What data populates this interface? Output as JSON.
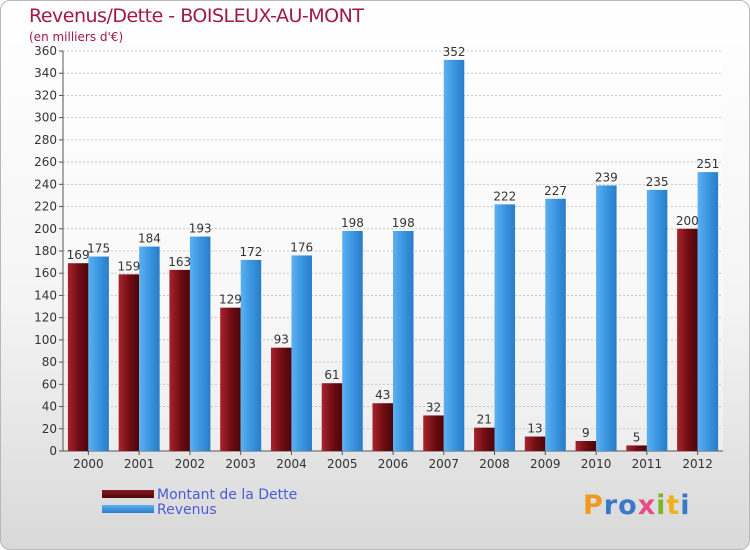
{
  "chart_data": {
    "type": "bar",
    "title": "Revenus/Dette - BOISLEUX-AU-MONT",
    "subtitle": "(en milliers d'€)",
    "categories": [
      "2000",
      "2001",
      "2002",
      "2003",
      "2004",
      "2005",
      "2006",
      "2007",
      "2008",
      "2009",
      "2010",
      "2011",
      "2012"
    ],
    "series": [
      {
        "name": "Montant de la Dette",
        "color": "#7a1016",
        "values": [
          169,
          159,
          163,
          129,
          93,
          61,
          43,
          32,
          21,
          13,
          9,
          5,
          200
        ]
      },
      {
        "name": "Revenus",
        "color": "#3a96e0",
        "values": [
          175,
          184,
          193,
          172,
          176,
          198,
          198,
          352,
          222,
          227,
          239,
          235,
          251
        ]
      }
    ],
    "ylim": [
      0,
      360
    ],
    "yticks": [
      0,
      20,
      40,
      60,
      80,
      100,
      120,
      140,
      160,
      180,
      200,
      220,
      240,
      260,
      280,
      300,
      320,
      340,
      360
    ],
    "grid": true,
    "legend": "bottom-left"
  },
  "logo": {
    "letters": [
      "P",
      "r",
      "o",
      "x",
      "i",
      "t",
      "i"
    ],
    "colors": [
      "#f09a22",
      "#3a78c8",
      "#3a78c8",
      "#e84a8a",
      "#7ab628",
      "#f0b020",
      "#3a78c8"
    ]
  }
}
